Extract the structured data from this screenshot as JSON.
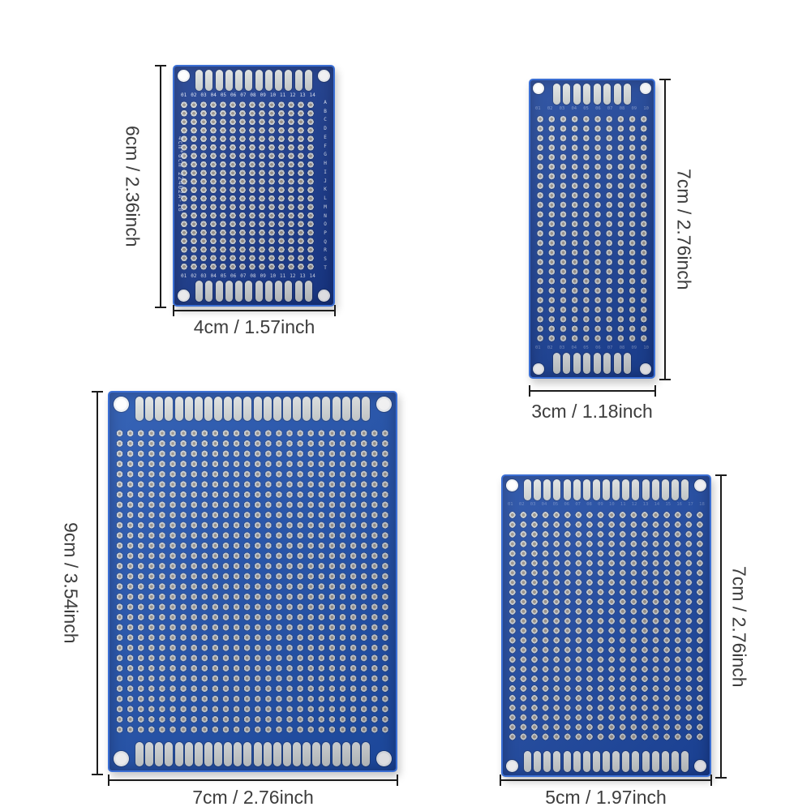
{
  "page": {
    "background_color": "#ffffff",
    "description": "Four blue double-sided prototype PCB perfboards with dimension annotations"
  },
  "annotation": {
    "line_color": "#1c1c1c",
    "text_color": "#3d3d3d"
  },
  "boards": [
    {
      "name": "4cm x 6cm prototype PCB",
      "height_label": "6cm / 2.36inch",
      "width_label": "4cm / 1.57inch",
      "silk_text": "4cm*6cm 22402A-18",
      "column_labels": "01 02 03 04 05 06 07 08 09 10 11 12 13 14",
      "row_labels": "ABCDEFGHIJKLMNOPQRST",
      "grid": {
        "cols": 14,
        "rows": 20
      },
      "top_pads": 12,
      "bottom_pads": 12,
      "body_color": "#1a3c90"
    },
    {
      "name": "3cm x 7cm prototype PCB",
      "height_label": "7cm / 2.76inch",
      "width_label": "3cm / 1.18inch",
      "column_labels": "01 02 03 04 05 06 07 08 09 10",
      "grid": {
        "cols": 10,
        "rows": 24
      },
      "top_pads": 8,
      "bottom_pads": 8,
      "body_color": "#1d459b"
    },
    {
      "name": "7cm x 9cm prototype PCB",
      "height_label": "9cm / 3.54inch",
      "width_label": "7cm / 2.76inch",
      "grid": {
        "cols": 26,
        "rows": 30
      },
      "top_pads": 24,
      "bottom_pads": 24,
      "body_color": "#2052ae"
    },
    {
      "name": "5cm x 7cm prototype PCB",
      "height_label": "7cm / 2.76inch",
      "width_label": "5cm / 1.97inch",
      "column_labels": "01 02 03 04 05 06 07 08 09 10 11 12 13 14 15 16 17 18",
      "grid": {
        "cols": 18,
        "rows": 24
      },
      "top_pads": 17,
      "bottom_pads": 17,
      "body_color": "#1e4aa4"
    }
  ]
}
